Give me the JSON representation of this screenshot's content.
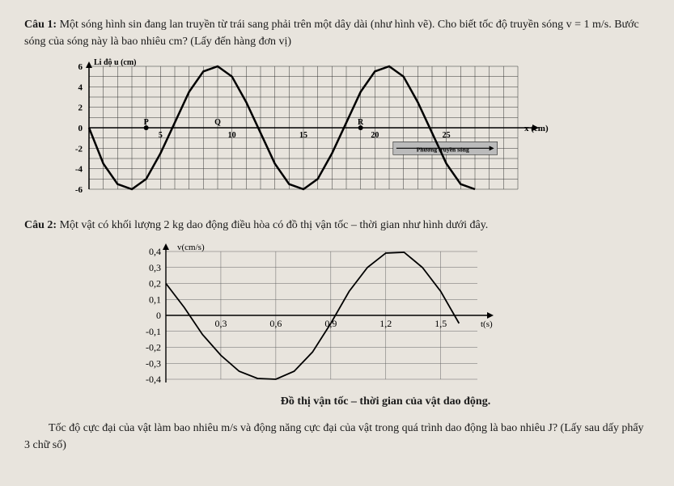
{
  "q1": {
    "label": "Câu 1:",
    "text1": "Một sóng hình sin đang lan truyền từ trái sang phải trên một dây dài (như hình vẽ). Cho biết tốc độ truyền sóng v = 1 m/s. Bước sóng của sóng này là bao nhiêu cm? (Lấy đến hàng đơn vị)",
    "chart": {
      "ylabel": "Li độ u (cm)",
      "xlabel": "x (cm)",
      "direction_label": "Phương truyền sóng",
      "yticks": [
        "6",
        "4",
        "2",
        "0",
        "-2",
        "-4",
        "-6"
      ],
      "xtick_labels": {
        "P": "P",
        "5": "5",
        "Q": "Q",
        "10": "10",
        "15": "15",
        "R": "R",
        "20": "20",
        "25": "25"
      },
      "ylim": [
        -6,
        6
      ],
      "xlim": [
        0,
        30
      ],
      "grid_color": "#333333",
      "bg_color": "#ffffff",
      "line_color": "#000000",
      "line_width": 2.5,
      "amplitude": 6,
      "points": [
        [
          0,
          0
        ],
        [
          1,
          -3.5
        ],
        [
          2,
          -5.5
        ],
        [
          3,
          -6
        ],
        [
          4,
          -5
        ],
        [
          5,
          -2.5
        ],
        [
          6,
          0.5
        ],
        [
          7,
          3.5
        ],
        [
          8,
          5.5
        ],
        [
          9,
          6
        ],
        [
          10,
          5
        ],
        [
          11,
          2.5
        ],
        [
          12,
          -0.5
        ],
        [
          13,
          -3.5
        ],
        [
          14,
          -5.5
        ],
        [
          15,
          -6
        ],
        [
          16,
          -5
        ],
        [
          17,
          -2.5
        ],
        [
          18,
          0.5
        ],
        [
          19,
          3.5
        ],
        [
          20,
          5.5
        ],
        [
          21,
          6
        ],
        [
          22,
          5
        ],
        [
          23,
          2.5
        ],
        [
          24,
          -0.5
        ],
        [
          25,
          -3.5
        ],
        [
          26,
          -5.5
        ],
        [
          27,
          -6
        ]
      ]
    }
  },
  "q2": {
    "label": "Câu 2:",
    "text1": "Một vật có khối lượng 2 kg dao động điều hòa có đồ thị vận tốc – thời gian như hình dưới đây.",
    "chart": {
      "ylabel": "v(cm/s)",
      "xlabel": "t(s)",
      "yticks_pos": [
        "0,4",
        "0,3",
        "0,2",
        "0,1",
        "0"
      ],
      "yticks_neg": [
        "-0,1",
        "-0,2",
        "-0,3",
        "-0,4"
      ],
      "xtick_labels": [
        "0,3",
        "0,6",
        "0,9",
        "1,2",
        "1,5"
      ],
      "ylim": [
        -0.4,
        0.4
      ],
      "xlim": [
        0,
        1.7
      ],
      "bg_color": "#ffffff",
      "line_color": "#000000",
      "grid_color": "#666666",
      "line_width": 1.8,
      "points": [
        [
          0,
          0.2
        ],
        [
          0.1,
          0.05
        ],
        [
          0.2,
          -0.12
        ],
        [
          0.3,
          -0.25
        ],
        [
          0.4,
          -0.35
        ],
        [
          0.5,
          -0.395
        ],
        [
          0.6,
          -0.4
        ],
        [
          0.7,
          -0.35
        ],
        [
          0.8,
          -0.23
        ],
        [
          0.9,
          -0.05
        ],
        [
          1.0,
          0.15
        ],
        [
          1.1,
          0.3
        ],
        [
          1.2,
          0.39
        ],
        [
          1.3,
          0.395
        ],
        [
          1.4,
          0.3
        ],
        [
          1.5,
          0.15
        ],
        [
          1.6,
          -0.05
        ]
      ]
    },
    "caption": "Đồ thị vận tốc – thời gian của vật dao động.",
    "text2": "Tốc độ cực đại của vật làm bao nhiêu m/s và động năng cực đại của vật trong quá trình dao động là bao nhiêu J? (Lấy sau dấy phẩy 3 chữ số)"
  }
}
